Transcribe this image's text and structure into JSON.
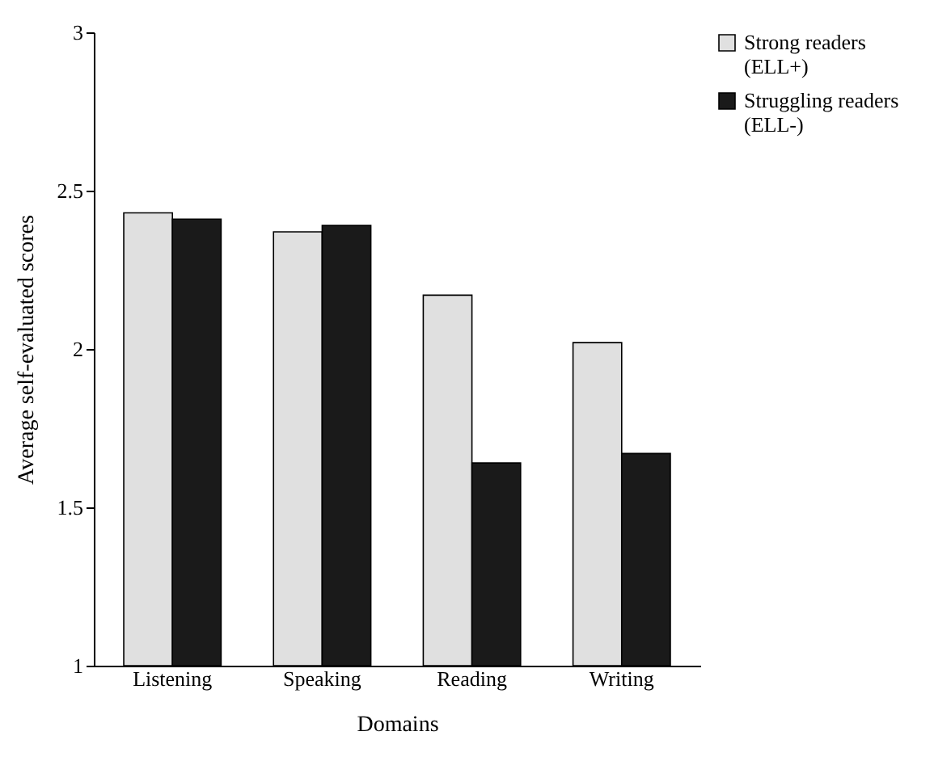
{
  "chart_data": {
    "type": "bar",
    "xlabel": "Domains",
    "ylabel": "Average self-evaluated scores",
    "categories": [
      "Listening",
      "Speaking",
      "Reading",
      "Writing"
    ],
    "series": [
      {
        "name": "Strong readers (ELL+)",
        "color": "#e0e0e0",
        "values": [
          2.43,
          2.37,
          2.17,
          2.02
        ]
      },
      {
        "name": "Struggling readers (ELL-)",
        "color": "#1a1a1a",
        "values": [
          2.41,
          2.39,
          1.64,
          1.67
        ]
      }
    ],
    "ylim": [
      1,
      3
    ],
    "yticks": [
      1,
      1.5,
      2,
      2.5,
      3
    ],
    "grid": false,
    "legend": "right"
  }
}
